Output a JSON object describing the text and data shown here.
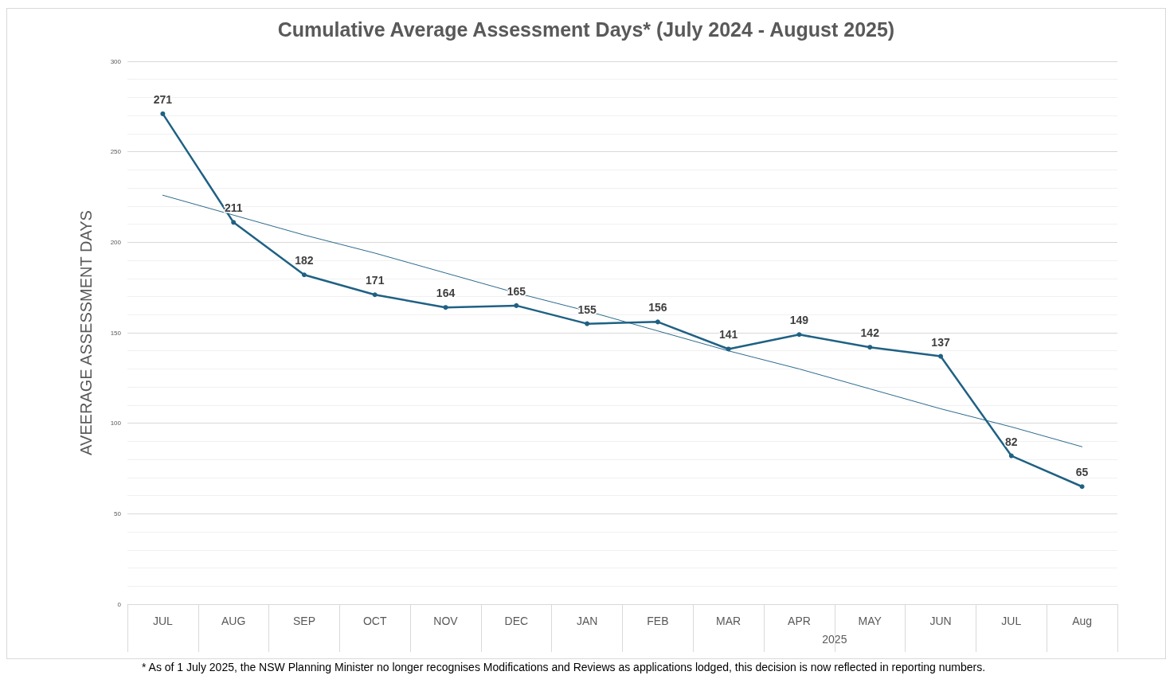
{
  "chart_data": {
    "type": "line",
    "title": "Cumulative Average Assessment Days* (July 2024 - August 2025)",
    "ylabel": "AVEERAGE ASSESSMENT DAYS",
    "categories": [
      "JUL",
      "AUG",
      "SEP",
      "OCT",
      "NOV",
      "DEC",
      "JAN",
      "FEB",
      "MAR",
      "APR",
      "MAY",
      "JUN",
      "JUL",
      "Aug"
    ],
    "series": [
      {
        "color": "#1f6184",
        "values": [
          271,
          211,
          182,
          171,
          164,
          165,
          155,
          156,
          141,
          149,
          142,
          137,
          82,
          65
        ],
        "marker": "circle",
        "data_labels": true
      },
      {
        "type": "line",
        "color": "#2a6a8c",
        "values": [
          226,
          215,
          204,
          194,
          183,
          172,
          162,
          151,
          140,
          130,
          119,
          108,
          98,
          87
        ],
        "marker": "none"
      }
    ],
    "ylim": [
      0,
      300
    ],
    "yticks": [
      0,
      50,
      100,
      150,
      200,
      250,
      300
    ],
    "grid": "y",
    "annotations": [
      "2025",
      "* As of 1 July 2025, the NSW Planning Minister no longer recognises Modifications and Reviews as applications lodged, this decision is now reflected in reporting numbers."
    ]
  }
}
